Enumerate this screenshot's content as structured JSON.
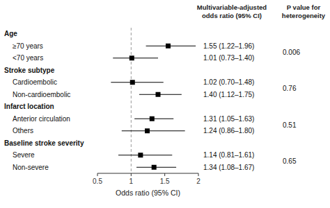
{
  "chart_data": {
    "type": "forest",
    "categories": [
      "Age",
      "≥70 years",
      "<70 years",
      "Stroke subtype",
      "Cardioembolic",
      "Non-cardioembolic",
      "Infarct location",
      "Anterior circulation",
      "Others",
      "Baseline stroke severity",
      "Severe",
      "Non-severe"
    ],
    "values": [
      null,
      1.55,
      1.01,
      null,
      1.02,
      1.4,
      null,
      1.31,
      1.24,
      null,
      1.14,
      1.34
    ],
    "ci_lo": [
      null,
      1.22,
      0.73,
      null,
      0.7,
      1.12,
      null,
      1.05,
      0.86,
      null,
      0.81,
      1.08
    ],
    "ci_hi": [
      null,
      1.96,
      1.4,
      null,
      1.48,
      1.75,
      null,
      1.63,
      1.8,
      null,
      1.61,
      1.67
    ],
    "value_labels": [
      null,
      "1.55 (1.22–1.96)",
      "1.01 (0.73–1.40)",
      null,
      "1.02 (0.70–1.48)",
      "1.40 (1.12–1.75)",
      null,
      "1.31 (1.05–1.63)",
      "1.24 (0.86–1.80)",
      null,
      "1.14 (0.81–1.61)",
      "1.34 (1.08–1.67)"
    ],
    "p_values": [
      0.006,
      0.76,
      0.51,
      0.65
    ],
    "column_headers": [
      "Multivariable-adjusted\nodds ratio (95% CI)",
      "P value for\nheterogeneity"
    ],
    "xlabel": "Odds ratio (95% CI)",
    "xlim": [
      0.5,
      2.0
    ],
    "xticks": [
      0.5,
      1,
      1.5,
      2
    ],
    "ref_line": 1,
    "color": "black",
    "grid": false
  }
}
